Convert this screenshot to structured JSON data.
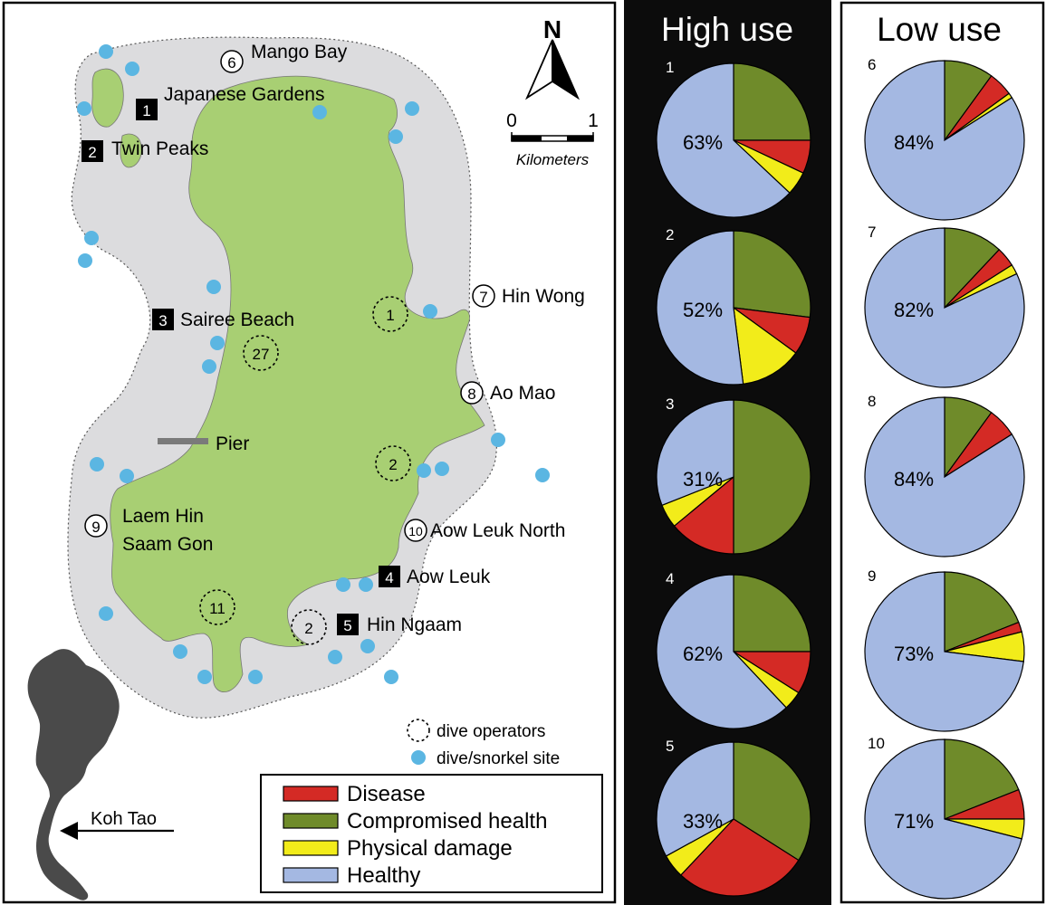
{
  "map": {
    "north_letter": "N",
    "scale": {
      "zero": "0",
      "one": "1",
      "unit": "Kilometers"
    },
    "sites": [
      {
        "num": "6",
        "name": "Mango Bay",
        "kind": "low"
      },
      {
        "num": "1",
        "name": "Japanese Gardens",
        "kind": "high"
      },
      {
        "num": "2",
        "name": "Twin Peaks",
        "kind": "high"
      },
      {
        "num": "7",
        "name": "Hin Wong",
        "kind": "low"
      },
      {
        "num": "3",
        "name": "Sairee Beach",
        "kind": "high"
      },
      {
        "num": "8",
        "name": "Ao Mao",
        "kind": "low"
      },
      {
        "num": "9",
        "name": "Laem Hin",
        "name2": "Saam Gon",
        "kind": "low"
      },
      {
        "num": "10",
        "name": "Aow Leuk North",
        "kind": "low"
      },
      {
        "num": "4",
        "name": "Aow Leuk",
        "kind": "high"
      },
      {
        "num": "5",
        "name": "Hin Ngaam",
        "kind": "high"
      }
    ],
    "pier_label": "Pier",
    "operators": [
      "1",
      "27",
      "2",
      "11",
      "2"
    ],
    "legend_small": {
      "operators": "dive operators",
      "sites": "dive/snorkel site"
    },
    "inset_label": "Koh Tao",
    "legend": [
      {
        "label": "Disease",
        "color": "#d42a25"
      },
      {
        "label": "Compromised health",
        "color": "#6f8b2a"
      },
      {
        "label": "Physical damage",
        "color": "#f2ec1a"
      },
      {
        "label": "Healthy",
        "color": "#a4b8e2"
      }
    ]
  },
  "panels": {
    "high_title": "High use",
    "low_title": "Low use"
  },
  "chart_data": {
    "type": "pie",
    "categories": [
      "Compromised health",
      "Disease",
      "Physical damage",
      "Healthy"
    ],
    "colors": {
      "Compromised health": "#6f8b2a",
      "Disease": "#d42a25",
      "Physical damage": "#f2ec1a",
      "Healthy": "#a4b8e2"
    },
    "pies": [
      {
        "site": "1",
        "group": "High use",
        "label": "63%",
        "values": {
          "Compromised health": 25,
          "Disease": 7,
          "Physical damage": 5,
          "Healthy": 63
        }
      },
      {
        "site": "2",
        "group": "High use",
        "label": "52%",
        "values": {
          "Compromised health": 27,
          "Disease": 8,
          "Physical damage": 13,
          "Healthy": 52
        }
      },
      {
        "site": "3",
        "group": "High use",
        "label": "31%",
        "values": {
          "Compromised health": 50,
          "Disease": 14,
          "Physical damage": 5,
          "Healthy": 31
        }
      },
      {
        "site": "4",
        "group": "High use",
        "label": "62%",
        "values": {
          "Compromised health": 25,
          "Disease": 9,
          "Physical damage": 4,
          "Healthy": 62
        }
      },
      {
        "site": "5",
        "group": "High use",
        "label": "33%",
        "values": {
          "Compromised health": 34,
          "Disease": 28,
          "Physical damage": 5,
          "Healthy": 33
        }
      },
      {
        "site": "6",
        "group": "Low use",
        "label": "84%",
        "values": {
          "Compromised health": 10,
          "Disease": 5,
          "Physical damage": 1,
          "Healthy": 84
        }
      },
      {
        "site": "7",
        "group": "Low use",
        "label": "82%",
        "values": {
          "Compromised health": 12,
          "Disease": 4,
          "Physical damage": 2,
          "Healthy": 82
        }
      },
      {
        "site": "8",
        "group": "Low use",
        "label": "84%",
        "values": {
          "Compromised health": 10,
          "Disease": 6,
          "Physical damage": 0,
          "Healthy": 84
        }
      },
      {
        "site": "9",
        "group": "Low use",
        "label": "73%",
        "values": {
          "Compromised health": 19,
          "Disease": 2,
          "Physical damage": 6,
          "Healthy": 73
        }
      },
      {
        "site": "10",
        "group": "Low use",
        "label": "71%",
        "values": {
          "Compromised health": 19,
          "Disease": 6,
          "Physical damage": 4,
          "Healthy": 71
        }
      }
    ]
  }
}
